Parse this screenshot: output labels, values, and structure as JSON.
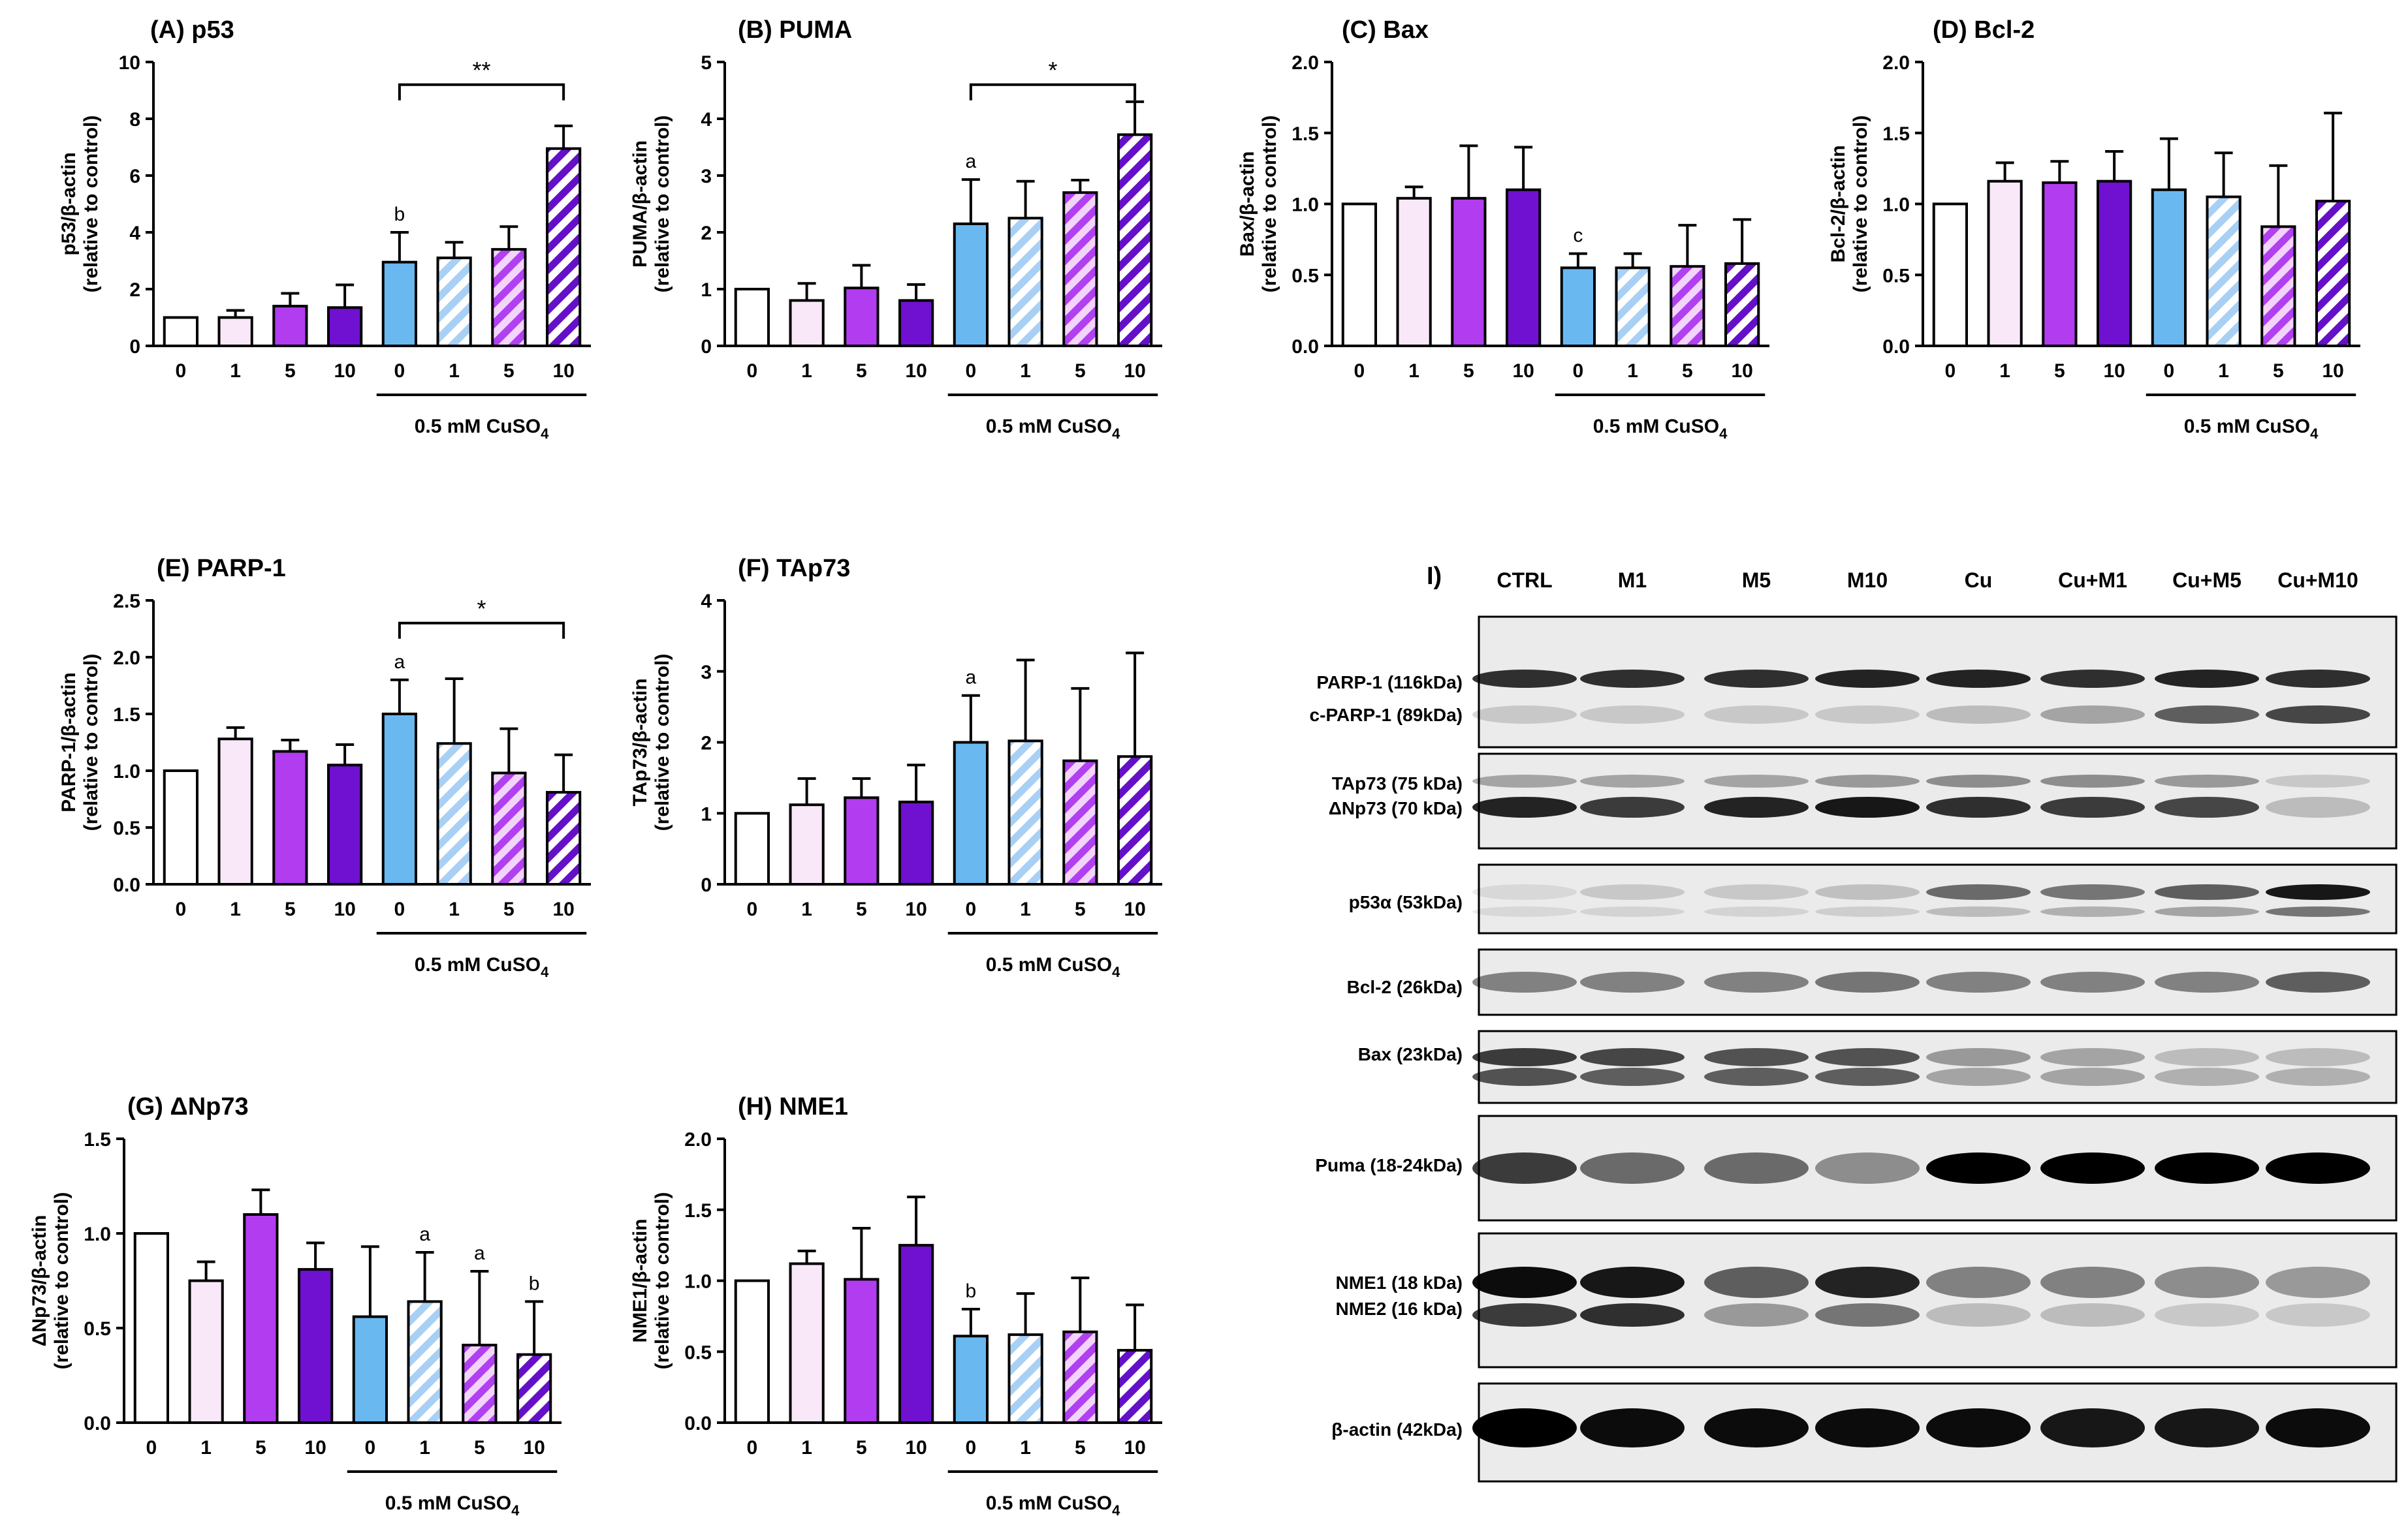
{
  "figure": {
    "treatment_note": "0.5 mM CuSO",
    "treatment_sub": "4",
    "doses": [
      "0",
      "1",
      "5",
      "10",
      "0",
      "1",
      "5",
      "10"
    ],
    "colors": {
      "white": "#ffffff",
      "light": "#f8e8f8",
      "mid": "#b23cf0",
      "dark": "#7010d0",
      "blue": "#6ab8f0",
      "hatch_light_blue": "#a8d0f5",
      "hatch_purple": "#b040f0",
      "hatch_dark": "#6410c8"
    }
  },
  "chart_data": [
    {
      "id": "A",
      "title": "(A) p53",
      "type": "bar",
      "ylabel_lines": [
        "p53/β-actin",
        "(relative to control)"
      ],
      "ylim": [
        0,
        10
      ],
      "yticks": [
        "0",
        "2",
        "4",
        "6",
        "8",
        "10"
      ],
      "categories": [
        "0",
        "1",
        "5",
        "10",
        "0",
        "1",
        "5",
        "10"
      ],
      "values": [
        1.0,
        1.0,
        1.4,
        1.35,
        2.95,
        3.1,
        3.4,
        6.95
      ],
      "errors": [
        0,
        0.25,
        0.45,
        0.8,
        1.05,
        0.55,
        0.8,
        0.8
      ],
      "letters": [
        null,
        null,
        null,
        null,
        "b",
        null,
        null,
        null
      ],
      "sig": {
        "from": 4,
        "to": 7,
        "label": "**",
        "y": 9.2
      }
    },
    {
      "id": "B",
      "title": "(B) PUMA",
      "type": "bar",
      "ylabel_lines": [
        "PUMA/β-actin",
        "(relative to control)"
      ],
      "ylim": [
        0,
        5
      ],
      "yticks": [
        "0",
        "1",
        "2",
        "3",
        "4",
        "5"
      ],
      "categories": [
        "0",
        "1",
        "5",
        "10",
        "0",
        "1",
        "5",
        "10"
      ],
      "values": [
        1.0,
        0.8,
        1.02,
        0.8,
        2.15,
        2.25,
        2.7,
        3.72
      ],
      "errors": [
        0,
        0.3,
        0.4,
        0.28,
        0.78,
        0.65,
        0.22,
        0.58
      ],
      "letters": [
        null,
        null,
        null,
        null,
        "a",
        null,
        null,
        null
      ],
      "sig": {
        "from": 4,
        "to": 7,
        "label": "*",
        "y": 4.6
      }
    },
    {
      "id": "C",
      "title": "(C) Bax",
      "type": "bar",
      "ylabel_lines": [
        "Bax/β-actin",
        "(relative to control)"
      ],
      "ylim": [
        0,
        2
      ],
      "yticks": [
        "0.0",
        "0.5",
        "1.0",
        "1.5",
        "2.0"
      ],
      "categories": [
        "0",
        "1",
        "5",
        "10",
        "0",
        "1",
        "5",
        "10"
      ],
      "values": [
        1.0,
        1.04,
        1.04,
        1.1,
        0.55,
        0.55,
        0.56,
        0.58
      ],
      "errors": [
        0,
        0.08,
        0.37,
        0.3,
        0.1,
        0.1,
        0.29,
        0.31
      ],
      "letters": [
        null,
        null,
        null,
        null,
        "c",
        null,
        null,
        null
      ],
      "sig": null
    },
    {
      "id": "D",
      "title": "(D) Bcl-2",
      "type": "bar",
      "ylabel_lines": [
        "Bcl-2/β-actin",
        "(relative to control)"
      ],
      "ylim": [
        0,
        2
      ],
      "yticks": [
        "0.0",
        "0.5",
        "1.0",
        "1.5",
        "2.0"
      ],
      "categories": [
        "0",
        "1",
        "5",
        "10",
        "0",
        "1",
        "5",
        "10"
      ],
      "values": [
        1.0,
        1.16,
        1.15,
        1.16,
        1.1,
        1.05,
        0.84,
        1.02
      ],
      "errors": [
        0,
        0.13,
        0.15,
        0.21,
        0.36,
        0.31,
        0.43,
        0.62
      ],
      "letters": [
        null,
        null,
        null,
        null,
        null,
        null,
        null,
        null
      ],
      "sig": null
    },
    {
      "id": "E",
      "title": "(E) PARP-1",
      "type": "bar",
      "ylabel_lines": [
        "PARP-1/β-actin",
        "(relative to control)"
      ],
      "ylim": [
        0,
        2.5
      ],
      "yticks": [
        "0.0",
        "0.5",
        "1.0",
        "1.5",
        "2.0",
        "2.5"
      ],
      "categories": [
        "0",
        "1",
        "5",
        "10",
        "0",
        "1",
        "5",
        "10"
      ],
      "values": [
        1.0,
        1.28,
        1.17,
        1.05,
        1.5,
        1.24,
        0.98,
        0.81
      ],
      "errors": [
        0,
        0.1,
        0.1,
        0.18,
        0.3,
        0.57,
        0.39,
        0.33
      ],
      "letters": [
        null,
        null,
        null,
        null,
        "a",
        null,
        null,
        null
      ],
      "sig": {
        "from": 4,
        "to": 7,
        "label": "*",
        "y": 2.3
      }
    },
    {
      "id": "F",
      "title": "(F) TAp73",
      "type": "bar",
      "ylabel_lines": [
        "TAp73/β-actin",
        "(relative to control)"
      ],
      "ylim": [
        0,
        4
      ],
      "yticks": [
        "0",
        "1",
        "2",
        "3",
        "4"
      ],
      "categories": [
        "0",
        "1",
        "5",
        "10",
        "0",
        "1",
        "5",
        "10"
      ],
      "values": [
        1.0,
        1.12,
        1.22,
        1.16,
        2.0,
        2.02,
        1.74,
        1.8
      ],
      "errors": [
        0,
        0.37,
        0.27,
        0.52,
        0.66,
        1.14,
        1.02,
        1.46
      ],
      "letters": [
        null,
        null,
        null,
        null,
        "a",
        null,
        null,
        null
      ],
      "sig": null
    },
    {
      "id": "G",
      "title": "(G) ΔNp73",
      "type": "bar",
      "ylabel_lines": [
        "ΔNp73/β-actin",
        "(relative to control)"
      ],
      "ylim": [
        0,
        1.5
      ],
      "yticks": [
        "0.0",
        "0.5",
        "1.0",
        "1.5"
      ],
      "categories": [
        "0",
        "1",
        "5",
        "10",
        "0",
        "1",
        "5",
        "10"
      ],
      "values": [
        1.0,
        0.75,
        1.1,
        0.81,
        0.56,
        0.64,
        0.41,
        0.36
      ],
      "errors": [
        0,
        0.1,
        0.13,
        0.14,
        0.37,
        0.26,
        0.39,
        0.28
      ],
      "letters": [
        null,
        null,
        null,
        null,
        null,
        "a",
        "a",
        "b"
      ],
      "sig": null
    },
    {
      "id": "H",
      "title": "(H) NME1",
      "type": "bar",
      "ylabel_lines": [
        "NME1/β-actin",
        "(relative to control)"
      ],
      "ylim": [
        0,
        2
      ],
      "yticks": [
        "0.0",
        "0.5",
        "1.0",
        "1.5",
        "2.0"
      ],
      "categories": [
        "0",
        "1",
        "5",
        "10",
        "0",
        "1",
        "5",
        "10"
      ],
      "values": [
        1.0,
        1.12,
        1.01,
        1.25,
        0.61,
        0.62,
        0.64,
        0.51
      ],
      "errors": [
        0,
        0.09,
        0.36,
        0.34,
        0.19,
        0.29,
        0.38,
        0.32
      ],
      "letters": [
        null,
        null,
        null,
        null,
        "b",
        null,
        null,
        null
      ],
      "sig": null
    }
  ],
  "blot": {
    "title": "I)",
    "lanes": [
      "CTRL",
      "M1",
      "M5",
      "M10",
      "Cu",
      "Cu+M1",
      "Cu+M5",
      "Cu+M10"
    ],
    "strips": [
      {
        "labels": [
          "PARP-1 (116kDa)",
          "c-PARP-1 (89kDa)"
        ]
      },
      {
        "labels": [
          "TAp73 (75 kDa)",
          "ΔNp73 (70 kDa)"
        ]
      },
      {
        "labels": [
          "p53α (53kDa)"
        ]
      },
      {
        "labels": [
          "Bcl-2 (26kDa)"
        ]
      },
      {
        "labels": [
          "Bax (23kDa)"
        ]
      },
      {
        "labels": [
          "Puma (18-24kDa)"
        ]
      },
      {
        "labels": [
          "NME1 (18 kDa)",
          "NME2 (16 kDa)"
        ]
      },
      {
        "labels": [
          "β-actin (42kDa)"
        ]
      }
    ]
  }
}
